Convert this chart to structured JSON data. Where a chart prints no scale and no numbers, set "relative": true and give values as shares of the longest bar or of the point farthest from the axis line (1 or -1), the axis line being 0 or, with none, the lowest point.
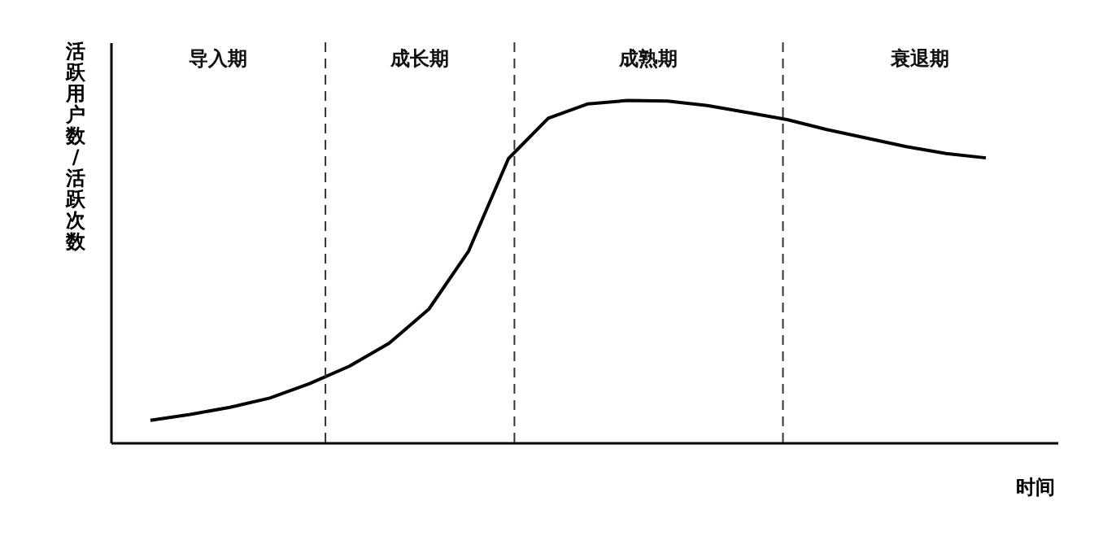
{
  "chart_data": {
    "type": "line",
    "relative": true,
    "xlabel": "时间",
    "ylabel": "活跃用户数/活跃次数",
    "categories": [
      null,
      null,
      null,
      null,
      null,
      null,
      null,
      null,
      null,
      null,
      null,
      null,
      null,
      null,
      null,
      null,
      null,
      null,
      null,
      null,
      null,
      null
    ],
    "grid": false,
    "marker": "none",
    "line_style": "solid",
    "series": [
      {
        "color": "#000000",
        "values": [
          0.065,
          0.082,
          0.103,
          0.13,
          0.172,
          0.223,
          0.29,
          0.39,
          0.56,
          0.83,
          0.948,
          0.99,
          1.0,
          0.998,
          0.985,
          0.965,
          0.944,
          0.915,
          0.89,
          0.865,
          0.845,
          0.832
        ]
      }
    ],
    "annotations": [
      "导入期",
      "成长期",
      "成熟期",
      "衰退期"
    ]
  }
}
